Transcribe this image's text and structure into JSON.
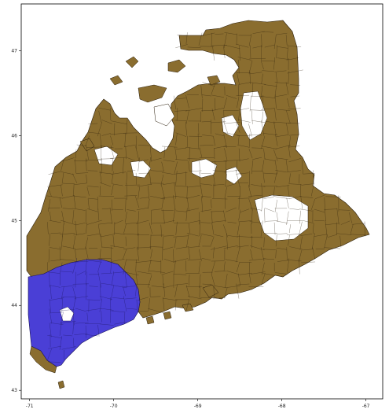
{
  "colors": {
    "region_a": "#8a6d2f",
    "region_b": "#4a3fd6",
    "edges": "#2a1d0a",
    "background": "#ffffff",
    "frame": "#000000"
  },
  "chart_data": {
    "type": "map",
    "xlabel": "",
    "ylabel": "",
    "xlim": [
      -71.1,
      -66.8
    ],
    "ylim": [
      42.9,
      47.55
    ],
    "xticks": [
      -71,
      -70,
      -69,
      -68,
      -67
    ],
    "yticks": [
      43,
      44,
      45,
      46,
      47
    ],
    "xtick_labels": [
      "-71",
      "-70",
      "-69",
      "-68",
      "-67"
    ],
    "ytick_labels": [
      "43",
      "44",
      "45",
      "46",
      "47"
    ],
    "grid": false,
    "regions": [
      {
        "fill": "region_a"
      },
      {
        "fill": "region_b"
      }
    ]
  }
}
